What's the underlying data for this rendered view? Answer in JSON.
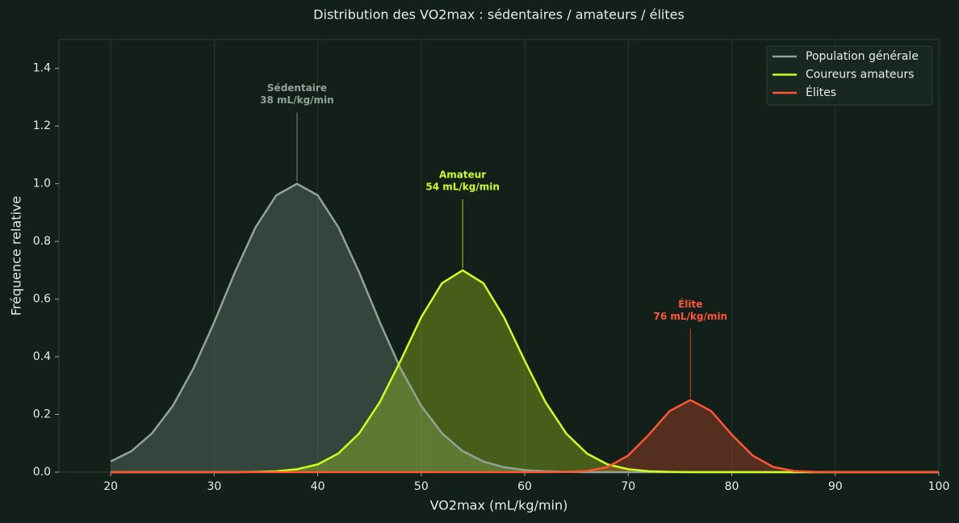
{
  "chart_data": {
    "type": "area-line",
    "title": "Distribution des VO2max : sédentaires / amateurs / élites",
    "xlabel": "VO2max (mL/kg/min)",
    "ylabel": "Fréquence relative",
    "x": [
      20,
      22,
      24,
      26,
      28,
      30,
      32,
      34,
      36,
      38,
      40,
      42,
      44,
      46,
      48,
      50,
      52,
      54,
      56,
      58,
      60,
      62,
      64,
      66,
      68,
      70,
      72,
      74,
      76,
      78,
      80,
      82,
      84,
      86,
      88,
      90,
      92,
      94,
      96,
      98,
      100
    ],
    "series": [
      {
        "name": "Population générale",
        "color": "#8fa396",
        "values": [
          0.037,
          0.073,
          0.135,
          0.23,
          0.36,
          0.52,
          0.693,
          0.849,
          0.96,
          1,
          0.96,
          0.849,
          0.693,
          0.52,
          0.36,
          0.23,
          0.135,
          0.073,
          0.037,
          0.017,
          0.007,
          0.003,
          0.001,
          0,
          0,
          0,
          0,
          0,
          0,
          0,
          0,
          0,
          0,
          0,
          0,
          0,
          0,
          0,
          0,
          0,
          0
        ]
      },
      {
        "name": "Coureurs amateurs",
        "color": "#ccff1a",
        "values": [
          0,
          0,
          0,
          0,
          0,
          0,
          0,
          0.001,
          0.003,
          0.01,
          0.027,
          0.065,
          0.134,
          0.243,
          0.386,
          0.537,
          0.655,
          0.7,
          0.655,
          0.537,
          0.386,
          0.243,
          0.134,
          0.065,
          0.027,
          0.01,
          0.003,
          0.001,
          0,
          0,
          0,
          0,
          0,
          0,
          0,
          0,
          0,
          0,
          0,
          0,
          0
        ]
      },
      {
        "name": "Élites",
        "color": "#ff5533",
        "values": [
          0,
          0,
          0,
          0,
          0,
          0,
          0,
          0,
          0,
          0,
          0,
          0,
          0,
          0,
          0,
          0,
          0,
          0,
          0,
          0,
          0,
          0,
          0.001,
          0.004,
          0.018,
          0.058,
          0.13,
          0.212,
          0.25,
          0.212,
          0.13,
          0.058,
          0.018,
          0.004,
          0.001,
          0,
          0,
          0,
          0,
          0,
          0
        ]
      }
    ],
    "annotations": [
      {
        "label": "Sédentaire",
        "sublabel": "38 mL/kg/min",
        "x": 38,
        "y": 1,
        "color": "#8fa396"
      },
      {
        "label": "Amateur",
        "sublabel": "54 mL/kg/min",
        "x": 54,
        "y": 0.7,
        "color": "#ccff1a"
      },
      {
        "label": "Élite",
        "sublabel": "76 mL/kg/min",
        "x": 76,
        "y": 0.25,
        "color": "#ff5533"
      }
    ],
    "xlim": [
      15,
      100
    ],
    "ylim": [
      0,
      1.5
    ],
    "xticks": [
      20,
      30,
      40,
      50,
      60,
      70,
      80,
      90,
      100
    ],
    "yticks": [
      {
        "value": 0,
        "label": "0.0"
      },
      {
        "value": 0.2,
        "label": "0.2"
      },
      {
        "value": 0.4,
        "label": "0.4"
      },
      {
        "value": 0.6,
        "label": "0.6"
      },
      {
        "value": 0.8,
        "label": "0.8"
      },
      {
        "value": 1,
        "label": "1.0"
      },
      {
        "value": 1.2,
        "label": "1.2"
      },
      {
        "value": 1.4,
        "label": "1.4"
      }
    ],
    "grid": "x",
    "legend": "upper right"
  }
}
